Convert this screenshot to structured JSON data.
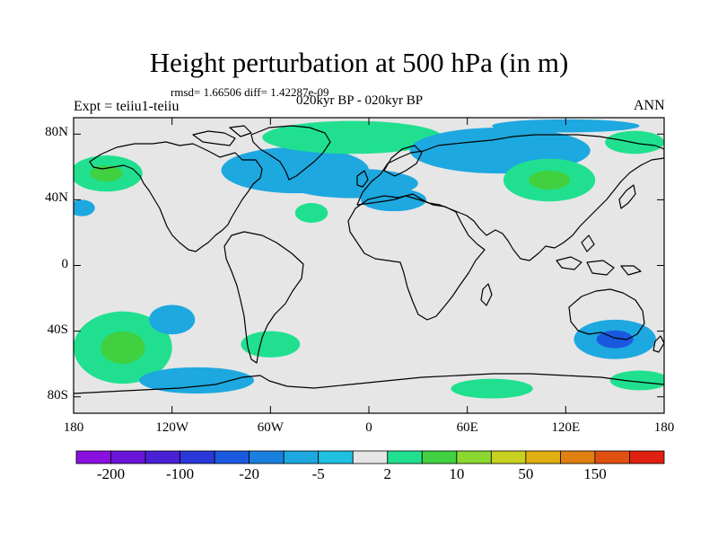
{
  "title": "Height perturbation at 500 hPa (in m)",
  "stats": "rmsd= 1.66506 diff= 1.42287e-09",
  "subtitle": "020kyr BP - 020kyr BP",
  "left_label": "Expt = teiiu1-teiiu",
  "right_label": "ANN",
  "map": {
    "projection": "cylindrical-equidistant",
    "lon_range": [
      -180,
      180
    ],
    "lat_range": [
      -90,
      90
    ],
    "background_color": "#e6e6e6",
    "lat_ticks": [
      {
        "value": 80,
        "label": "80N"
      },
      {
        "value": 40,
        "label": "40N"
      },
      {
        "value": 0,
        "label": "0"
      },
      {
        "value": -40,
        "label": "40S"
      },
      {
        "value": -80,
        "label": "80S"
      }
    ],
    "lon_ticks": [
      {
        "value": -180,
        "label": "180"
      },
      {
        "value": -120,
        "label": "120W"
      },
      {
        "value": -60,
        "label": "60W"
      },
      {
        "value": 0,
        "label": "0"
      },
      {
        "value": 60,
        "label": "60E"
      },
      {
        "value": 120,
        "label": "120E"
      },
      {
        "value": 180,
        "label": "180"
      }
    ],
    "anomalies": [
      {
        "lon": -160,
        "lat": 56,
        "rlon": 22,
        "rlat": 11,
        "level": 2,
        "core_level": 5
      },
      {
        "lon": -175,
        "lat": 35,
        "rlon": 8,
        "rlat": 5,
        "level": -5
      },
      {
        "lon": -150,
        "lat": -50,
        "rlon": 30,
        "rlat": 22,
        "level": 2,
        "core_level": 5
      },
      {
        "lon": -120,
        "lat": -33,
        "rlon": 14,
        "rlat": 9,
        "level": -5
      },
      {
        "lon": -105,
        "lat": -70,
        "rlon": 35,
        "rlat": 8,
        "level": -5
      },
      {
        "lon": -60,
        "lat": -48,
        "rlon": 18,
        "rlat": 8,
        "level": 2
      },
      {
        "lon": -35,
        "lat": 32,
        "rlon": 10,
        "rlat": 6,
        "level": 2
      },
      {
        "lon": -45,
        "lat": 58,
        "rlon": 45,
        "rlat": 14,
        "level": -5
      },
      {
        "lon": -10,
        "lat": 50,
        "rlon": 40,
        "rlat": 9,
        "level": -5
      },
      {
        "lon": 15,
        "lat": 40,
        "rlon": 20,
        "rlat": 7,
        "level": -5
      },
      {
        "lon": -10,
        "lat": 78,
        "rlon": 55,
        "rlat": 10,
        "level": 2
      },
      {
        "lon": 80,
        "lat": 70,
        "rlon": 55,
        "rlat": 14,
        "level": -5
      },
      {
        "lon": 110,
        "lat": 52,
        "rlon": 28,
        "rlat": 13,
        "level": 2,
        "core_level": 5
      },
      {
        "lon": 162,
        "lat": 75,
        "rlon": 18,
        "rlat": 7,
        "level": 2
      },
      {
        "lon": 150,
        "lat": -45,
        "rlon": 25,
        "rlat": 12,
        "level": -5,
        "core_level": -20
      },
      {
        "lon": 165,
        "lat": -70,
        "rlon": 18,
        "rlat": 6,
        "level": 2
      },
      {
        "lon": 75,
        "lat": -75,
        "rlon": 25,
        "rlat": 6,
        "level": 2
      },
      {
        "lon": 120,
        "lat": 85,
        "rlon": 45,
        "rlat": 4,
        "level": -5
      }
    ]
  },
  "colorbar": {
    "levels": [
      {
        "value": -200,
        "color": "#8a10e0"
      },
      {
        "value": -150,
        "color": "#6a16d8"
      },
      {
        "value": -100,
        "color": "#4a20d4"
      },
      {
        "value": -50,
        "color": "#2a38d8"
      },
      {
        "value": -20,
        "color": "#1a58e0"
      },
      {
        "value": -10,
        "color": "#1a80e0"
      },
      {
        "value": -5,
        "color": "#1ea8e0"
      },
      {
        "value": -2,
        "color": "#20c0e0"
      },
      {
        "value": 2,
        "color": "#e6e6e6"
      },
      {
        "value": 5,
        "color": "#20e090"
      },
      {
        "value": 10,
        "color": "#40d040"
      },
      {
        "value": 20,
        "color": "#8ad830"
      },
      {
        "value": 50,
        "color": "#c8d020"
      },
      {
        "value": 100,
        "color": "#e0b010"
      },
      {
        "value": 150,
        "color": "#e08010"
      },
      {
        "value": 200,
        "color": "#e05010"
      },
      {
        "value": 999,
        "color": "#e02010"
      }
    ],
    "labels": [
      {
        "index": 1,
        "label": "-200"
      },
      {
        "index": 3,
        "label": "-100"
      },
      {
        "index": 5,
        "label": "-20"
      },
      {
        "index": 7,
        "label": "-5"
      },
      {
        "index": 9,
        "label": "2"
      },
      {
        "index": 11,
        "label": "10"
      },
      {
        "index": 13,
        "label": "50"
      },
      {
        "index": 15,
        "label": "150"
      }
    ]
  }
}
